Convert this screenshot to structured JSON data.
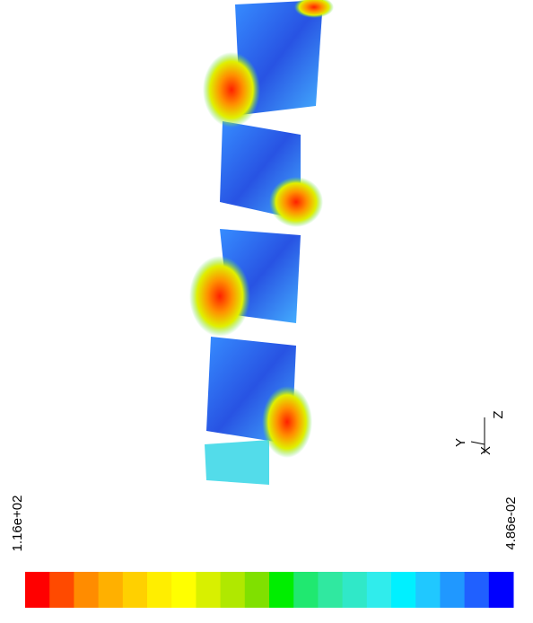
{
  "colorbar": {
    "max_label": "1.16e+02",
    "min_label": "4.86e-02",
    "colors": [
      "#ff0000",
      "#ff4a00",
      "#ff8c00",
      "#ffb000",
      "#ffd000",
      "#ffee00",
      "#ffff00",
      "#d8f000",
      "#b0e800",
      "#80e000",
      "#00ee00",
      "#20e870",
      "#30e8a0",
      "#30e8c8",
      "#30ecec",
      "#00f0ff",
      "#20c8ff",
      "#2098ff",
      "#2060ff",
      "#0000ff"
    ]
  },
  "axes": {
    "x": "X",
    "y": "Y",
    "z": "Z"
  }
}
